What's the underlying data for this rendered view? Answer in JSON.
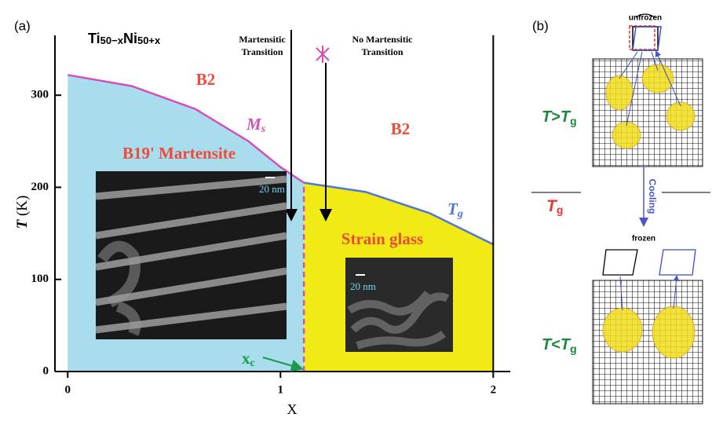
{
  "chart_data": {
    "type": "phase",
    "panel_label": "(a)",
    "formula": [
      "Ti",
      "50−x",
      "Ni",
      "50+x"
    ],
    "xlabel": "X",
    "ylabel": {
      "symbol": "T",
      "unit": "(K)"
    },
    "xlim": [
      -0.06,
      2.08
    ],
    "ylim": [
      0,
      365
    ],
    "xticks": [
      0,
      1,
      2
    ],
    "yticks": [
      0,
      100,
      200,
      300
    ],
    "series": [
      {
        "name_parts": [
          "M",
          "s"
        ],
        "color": "#d44fb8",
        "fill": "#a9dced",
        "x": [
          0,
          0.3,
          0.6,
          0.85,
          1.0,
          1.11
        ],
        "values": [
          322,
          310,
          285,
          250,
          222,
          205
        ]
      },
      {
        "name_parts": [
          "T",
          "g"
        ],
        "color": "#4f78d6",
        "fill": "#f1ea14",
        "x": [
          1.11,
          1.4,
          1.7,
          2.0
        ],
        "values": [
          205,
          195,
          172,
          138
        ]
      }
    ],
    "xc": {
      "label_parts": [
        "x",
        "c"
      ],
      "value": 1.11
    },
    "regions": [
      "B2",
      "B19' Martensite",
      "B2",
      "Strain glass"
    ],
    "annotations": {
      "martensitic": [
        "Martensitic",
        "Transition"
      ],
      "no_martensitic": [
        "No Martensitic",
        "Transition"
      ]
    },
    "scale_bars": [
      "20 nm",
      "20 nm"
    ]
  },
  "panel_b": {
    "label": "(b)",
    "top": {
      "caption": "unfrozen",
      "condition": [
        "T",
        ">",
        "T",
        "g"
      ]
    },
    "middle": {
      "tg": [
        "T",
        "g"
      ],
      "arrow": "Cooling"
    },
    "bottom": {
      "caption": "frozen",
      "condition": [
        "T",
        "<",
        "T",
        "g"
      ]
    }
  }
}
